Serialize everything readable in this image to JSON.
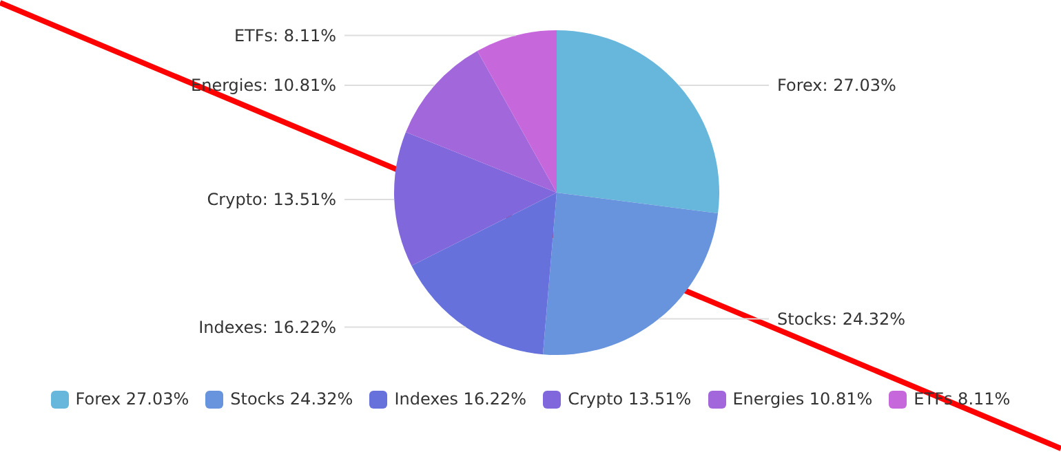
{
  "chart_data": {
    "type": "pie",
    "categories": [
      "Forex",
      "Stocks",
      "Indexes",
      "Crypto",
      "Energies",
      "ETFs"
    ],
    "values": [
      27.03,
      24.32,
      16.22,
      13.51,
      10.81,
      8.11
    ],
    "colors": [
      "#67b7dc",
      "#6794dc",
      "#6771dc",
      "#8067dc",
      "#a367dc",
      "#c767dc"
    ],
    "value_labels": [
      "27.03%",
      "24.32%",
      "16.22%",
      "13.51%",
      "10.81%",
      "8.11%"
    ],
    "data_labels": true,
    "legend": "bottom"
  }
}
